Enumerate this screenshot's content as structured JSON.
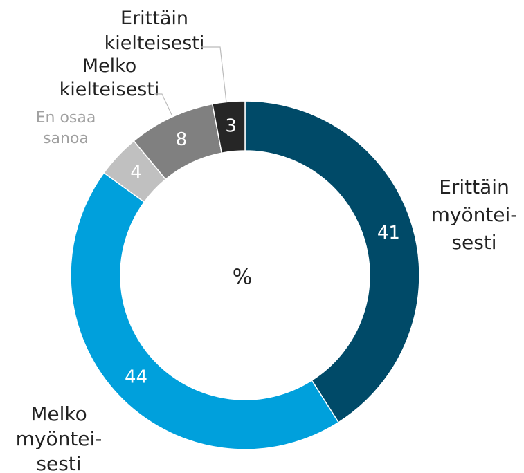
{
  "chart_data": {
    "type": "donut",
    "center_label": "%",
    "categories": [
      "Erittäin\nmyöntei-\nsesti",
      "Melko\nmyöntei-\nsesti",
      "En osaa\nsanoa",
      "Melko\nkielteisesti",
      "Erittäin\nkielteisesti"
    ],
    "values": [
      41,
      44,
      4,
      8,
      3
    ],
    "colors": [
      "#004a68",
      "#00a0dc",
      "#c0c0c0",
      "#808080",
      "#262626"
    ]
  }
}
